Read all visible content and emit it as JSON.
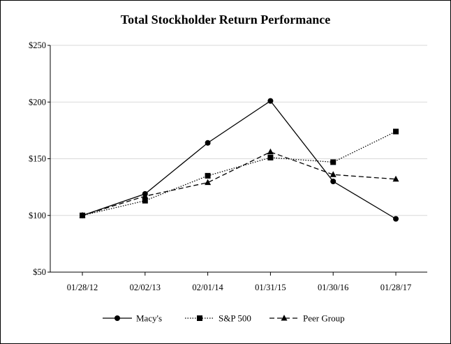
{
  "chart_data": {
    "type": "line",
    "title": "Total Stockholder Return Performance",
    "xlabel": "",
    "ylabel": "",
    "categories": [
      "01/28/12",
      "02/02/13",
      "02/01/14",
      "01/31/15",
      "01/30/16",
      "01/28/17"
    ],
    "y_ticks": [
      "$50",
      "$100",
      "$150",
      "$200",
      "$250"
    ],
    "ylim": [
      50,
      250
    ],
    "grid": true,
    "legend_position": "bottom",
    "series": [
      {
        "name": "Macy's",
        "values": [
          100,
          119,
          164,
          201,
          130,
          97
        ],
        "marker": "circle",
        "line_style": "solid"
      },
      {
        "name": "S&P 500",
        "values": [
          100,
          113,
          135,
          151,
          147,
          174
        ],
        "marker": "square",
        "line_style": "dotted"
      },
      {
        "name": "Peer Group",
        "values": [
          100,
          117,
          129,
          156,
          136,
          132
        ],
        "marker": "triangle",
        "line_style": "dashed"
      }
    ],
    "colors": {
      "line": "#000000",
      "grid": "#d9d9d9",
      "axis": "#000000"
    }
  }
}
